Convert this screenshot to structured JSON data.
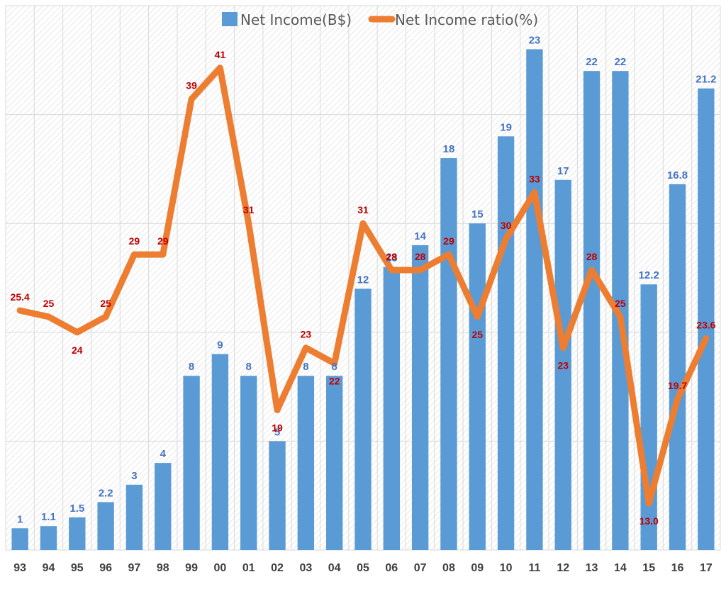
{
  "chart_data": {
    "type": "bar",
    "title": "",
    "xlabel": "",
    "ylabel": "",
    "categories": [
      "93",
      "94",
      "95",
      "96",
      "97",
      "98",
      "99",
      "00",
      "01",
      "02",
      "03",
      "04",
      "05",
      "06",
      "07",
      "08",
      "09",
      "10",
      "11",
      "12",
      "13",
      "14",
      "15",
      "16",
      "17"
    ],
    "series": [
      {
        "name": "Net Income(B$)",
        "kind": "bar",
        "color": "#5b9bd5",
        "label_color": "#4472c4",
        "values": [
          1,
          1.1,
          1.5,
          2.2,
          3,
          4,
          8,
          9,
          8,
          5,
          8,
          8,
          12,
          13,
          14,
          18,
          15,
          19,
          23,
          17,
          22,
          22,
          12.2,
          16.8,
          21.2
        ],
        "labels": [
          "1",
          "1.1",
          "1.5",
          "2.2",
          "3",
          "4",
          "8",
          "9",
          "8",
          "5",
          "8",
          "8",
          "12",
          "13",
          "14",
          "18",
          "15",
          "19",
          "23",
          "17",
          "22",
          "22",
          "12.2",
          "16.8",
          "21.2"
        ],
        "ylim": [
          0,
          25
        ]
      },
      {
        "name": "Net Income ratio(%)",
        "kind": "line",
        "color": "#ed7d31",
        "label_color": "#c00000",
        "values": [
          25.4,
          25,
          24,
          25,
          29,
          29,
          39,
          41,
          31,
          19,
          23,
          22,
          31,
          28,
          28,
          29,
          25,
          30,
          33,
          23,
          28,
          25,
          13.0,
          19.7,
          23.6
        ],
        "labels": [
          "25.4",
          "25",
          "24",
          "25",
          "29",
          "29",
          "39",
          "41",
          "31",
          "19",
          "23",
          "22",
          "31",
          "28",
          "28",
          "29",
          "25",
          "30",
          "33",
          "23",
          "28",
          "25",
          "13.0",
          "19.7",
          "23.6"
        ],
        "ylim": [
          10,
          45
        ]
      }
    ],
    "legend_position": "top",
    "grid": true
  }
}
